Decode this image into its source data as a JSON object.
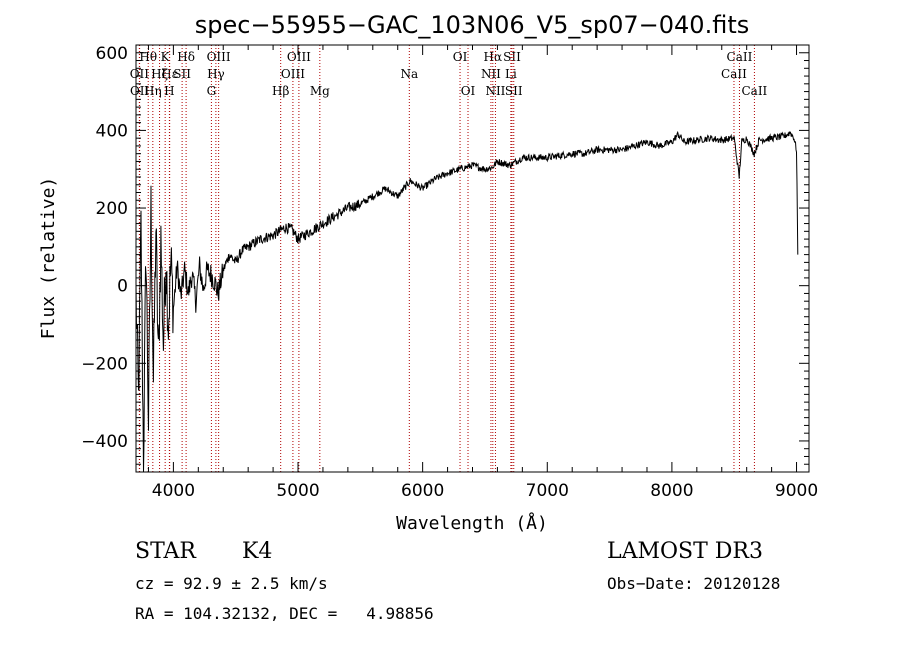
{
  "chart_data": {
    "type": "line",
    "title": "spec−55955−GAC_103N06_V5_sp07−040.fits",
    "xlabel": "Wavelength (Å)",
    "ylabel": "Flux (relative)",
    "xlim": [
      3700,
      9100
    ],
    "ylim": [
      -480,
      620
    ],
    "x_ticks": [
      4000,
      5000,
      6000,
      7000,
      8000,
      9000
    ],
    "y_ticks": [
      -400,
      -200,
      0,
      200,
      400,
      600
    ],
    "y_tick_labels": [
      "−400",
      "−200",
      "0",
      "200",
      "400",
      "600"
    ],
    "series": [
      {
        "name": "flux",
        "x": [
          3700,
          3720,
          3740,
          3760,
          3780,
          3800,
          3820,
          3840,
          3860,
          3880,
          3900,
          3920,
          3940,
          3960,
          3980,
          4000,
          4030,
          4060,
          4090,
          4120,
          4150,
          4180,
          4210,
          4240,
          4270,
          4300,
          4330,
          4360,
          4400,
          4450,
          4500,
          4550,
          4600,
          4650,
          4700,
          4750,
          4800,
          4850,
          4900,
          4950,
          5000,
          5100,
          5200,
          5300,
          5400,
          5500,
          5600,
          5700,
          5800,
          5900,
          6000,
          6100,
          6200,
          6300,
          6400,
          6500,
          6560,
          6600,
          6700,
          6800,
          6900,
          7000,
          7100,
          7200,
          7300,
          7400,
          7500,
          7600,
          7700,
          7800,
          7900,
          8000,
          8050,
          8100,
          8200,
          8300,
          8400,
          8500,
          8540,
          8560,
          8600,
          8660,
          8700,
          8800,
          8900,
          8950,
          8980,
          9000,
          9010
        ],
        "y": [
          -20,
          -300,
          150,
          -460,
          100,
          -350,
          200,
          -250,
          150,
          -200,
          120,
          -150,
          80,
          -100,
          60,
          -60,
          50,
          -30,
          40,
          -20,
          30,
          -40,
          50,
          -10,
          40,
          30,
          10,
          -20,
          40,
          80,
          60,
          90,
          100,
          110,
          120,
          125,
          130,
          140,
          150,
          145,
          120,
          140,
          160,
          180,
          200,
          210,
          230,
          250,
          230,
          270,
          250,
          275,
          290,
          300,
          310,
          300,
          305,
          320,
          310,
          330,
          330,
          330,
          335,
          340,
          340,
          350,
          350,
          350,
          360,
          370,
          360,
          370,
          390,
          370,
          375,
          380,
          375,
          380,
          280,
          370,
          380,
          340,
          375,
          380,
          385,
          395,
          380,
          350,
          80
        ]
      }
    ],
    "line_markers": [
      {
        "name": "OII",
        "x": 3727,
        "row": 2
      },
      {
        "name": "OII",
        "x": 3729,
        "row": 3
      },
      {
        "name": "Hθ",
        "x": 3798,
        "row": 1
      },
      {
        "name": "Hη",
        "x": 3835,
        "row": 3
      },
      {
        "name": "Hζ",
        "x": 3889,
        "row": 2
      },
      {
        "name": "K",
        "x": 3934,
        "row": 1
      },
      {
        "name": "Hε",
        "x": 3970,
        "row": 2
      },
      {
        "name": "H",
        "x": 3968,
        "row": 3
      },
      {
        "name": "SII",
        "x": 4070,
        "row": 2
      },
      {
        "name": "Hδ",
        "x": 4102,
        "row": 1
      },
      {
        "name": "OIII",
        "x": 4363,
        "row": 1
      },
      {
        "name": "Hγ",
        "x": 4341,
        "row": 2
      },
      {
        "name": "G",
        "x": 4305,
        "row": 3
      },
      {
        "name": "Hβ",
        "x": 4861,
        "row": 3
      },
      {
        "name": "OIII",
        "x": 5007,
        "row": 1
      },
      {
        "name": "OIII",
        "x": 4959,
        "row": 2
      },
      {
        "name": "Mg",
        "x": 5175,
        "row": 3
      },
      {
        "name": "Na",
        "x": 5893,
        "row": 2
      },
      {
        "name": "OI",
        "x": 6300,
        "row": 1
      },
      {
        "name": "OI",
        "x": 6364,
        "row": 3
      },
      {
        "name": "Hα",
        "x": 6563,
        "row": 1
      },
      {
        "name": "NII",
        "x": 6548,
        "row": 2
      },
      {
        "name": "NII",
        "x": 6584,
        "row": 3
      },
      {
        "name": "SII",
        "x": 6717,
        "row": 1
      },
      {
        "name": "Li",
        "x": 6708,
        "row": 2
      },
      {
        "name": "SII",
        "x": 6731,
        "row": 3
      },
      {
        "name": "CaII",
        "x": 8542,
        "row": 1
      },
      {
        "name": "CaII",
        "x": 8498,
        "row": 2
      },
      {
        "name": "CaII",
        "x": 8662,
        "row": 3
      }
    ]
  },
  "info": {
    "object_class": "STAR",
    "subclass": "K4",
    "survey": "LAMOST DR3",
    "cz": "cz = 92.9 ± 2.5 km/s",
    "obs_date": "Obs−Date: 20120128",
    "coords": "RA = 104.32132, DEC =   4.98856"
  }
}
